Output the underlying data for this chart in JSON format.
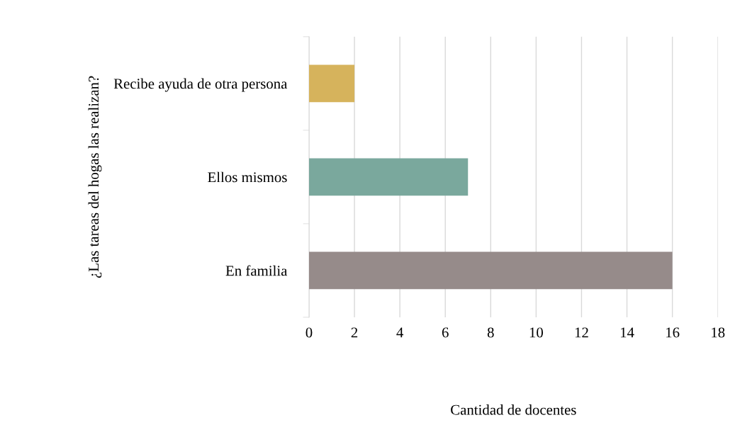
{
  "chart_data": {
    "type": "bar",
    "orientation": "horizontal",
    "xlabel": "Cantidad de docentes",
    "ylabel": "¿Las tareas del hogas las realizan?",
    "categories": [
      "Recibe ayuda de otra persona",
      "Ellos mismos",
      "En familia"
    ],
    "values": [
      2,
      7,
      16
    ],
    "colors": [
      "#d6b35c",
      "#7aa89d",
      "#968b8a"
    ],
    "xlim": [
      0,
      18
    ],
    "xticks": [
      0,
      2,
      4,
      6,
      8,
      10,
      12,
      14,
      16,
      18
    ],
    "grid": "x",
    "legend": false
  }
}
